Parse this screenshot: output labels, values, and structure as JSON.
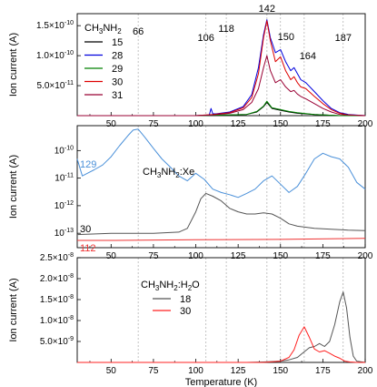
{
  "chart_data": [
    {
      "type": "line",
      "panel": "top",
      "ylabel": "Ion current (A)",
      "xlim": [
        30,
        200
      ],
      "ylim": [
        0,
        1.7e-10
      ],
      "x_ticks": [
        50,
        75,
        100,
        125,
        150,
        175,
        200
      ],
      "x_tick_labels": [
        "50",
        "75",
        "100",
        "125",
        "150",
        "175",
        "200"
      ],
      "y_ticks": [
        5e-11,
        1e-10,
        1.5e-10
      ],
      "y_tick_labels": [
        "5.0x10-11",
        "1.0x10-10",
        "1.5x10-10"
      ],
      "legend_title": "CH3NH2",
      "legend_position": "top-left",
      "grid": false,
      "annotations": [
        {
          "text": "66",
          "x": 66
        },
        {
          "text": "106",
          "x": 106
        },
        {
          "text": "118",
          "x": 118
        },
        {
          "text": "142",
          "x": 142
        },
        {
          "text": "150",
          "x": 150
        },
        {
          "text": "164",
          "x": 164
        },
        {
          "text": "187",
          "x": 187
        }
      ],
      "series": [
        {
          "name": "15",
          "color": "#000000",
          "x": [
            30,
            100,
            130,
            136,
            140,
            142,
            145,
            150,
            155,
            160,
            170,
            185,
            200
          ],
          "y": [
            0,
            0,
            2e-12,
            6e-12,
            1.5e-11,
            2.2e-11,
            1.2e-11,
            9e-12,
            6e-12,
            4e-12,
            2e-12,
            0,
            0
          ]
        },
        {
          "name": "28",
          "color": "#0000dd",
          "x": [
            30,
            100,
            108,
            109,
            110,
            112,
            120,
            128,
            133,
            137,
            140,
            142,
            144,
            147,
            150,
            153,
            156,
            158,
            160,
            162,
            165,
            170,
            175,
            180,
            185,
            190,
            200
          ],
          "y": [
            0,
            0,
            1e-12,
            1.2e-11,
            3e-12,
            3e-12,
            6e-12,
            1.5e-11,
            3.5e-11,
            8e-11,
            1.35e-10,
            1.6e-10,
            1.3e-10,
            1.05e-10,
            1.1e-10,
            9e-11,
            7.5e-11,
            8e-11,
            7e-11,
            6e-11,
            5.5e-11,
            4e-11,
            2.5e-11,
            1.2e-11,
            5e-12,
            2e-12,
            0
          ]
        },
        {
          "name": "29",
          "color": "#008000",
          "x": [
            30,
            100,
            130,
            136,
            140,
            142,
            145,
            150,
            155,
            160,
            170,
            185,
            200
          ],
          "y": [
            0,
            0,
            2e-12,
            7e-12,
            1.6e-11,
            2.4e-11,
            1.3e-11,
            1e-11,
            7e-12,
            5e-12,
            2e-12,
            0,
            0
          ]
        },
        {
          "name": "30",
          "color": "#dd0000",
          "x": [
            30,
            100,
            110,
            120,
            128,
            133,
            137,
            140,
            142,
            144,
            147,
            150,
            153,
            156,
            158,
            160,
            162,
            165,
            170,
            175,
            180,
            185,
            190,
            200
          ],
          "y": [
            0,
            0,
            2e-12,
            5e-12,
            1.3e-11,
            3e-11,
            7e-11,
            1.3e-10,
            1.58e-10,
            1.25e-10,
            9e-11,
            9.8e-11,
            7.5e-11,
            6e-11,
            6.5e-11,
            5.5e-11,
            4.8e-11,
            4.5e-11,
            3.2e-11,
            2e-11,
            1e-11,
            4e-12,
            1e-12,
            0
          ]
        },
        {
          "name": "31",
          "color": "#990033",
          "x": [
            30,
            100,
            110,
            120,
            128,
            133,
            137,
            140,
            142,
            144,
            147,
            150,
            153,
            156,
            158,
            160,
            162,
            165,
            170,
            175,
            180,
            185,
            200
          ],
          "y": [
            0,
            0,
            1e-12,
            4e-12,
            1e-11,
            2.2e-11,
            4.5e-11,
            8e-11,
            1e-10,
            7.5e-11,
            5.5e-11,
            6e-11,
            4.8e-11,
            4e-11,
            4.2e-11,
            3.6e-11,
            3.2e-11,
            2.8e-11,
            2e-11,
            1.2e-11,
            6e-12,
            2e-12,
            0
          ]
        }
      ]
    },
    {
      "type": "line",
      "panel": "middle",
      "ylabel": "Ion current (A)",
      "xlim": [
        30,
        200
      ],
      "yscale": "log",
      "ylim": [
        3e-14,
        8e-10
      ],
      "x_ticks": [
        50,
        75,
        100,
        125,
        150,
        175,
        200
      ],
      "x_tick_labels": [
        "50",
        "75",
        "100",
        "125",
        "150",
        "175",
        "200"
      ],
      "y_ticks": [
        1e-13,
        1e-12,
        1e-11,
        1e-10
      ],
      "y_tick_labels": [
        "10-13",
        "10-12",
        "10-11",
        "10-10"
      ],
      "annotation": "CH3NH2:Xe",
      "grid": false,
      "series": [
        {
          "name": "129",
          "color": "#4a90d9",
          "x": [
            30,
            33,
            36,
            40,
            45,
            50,
            55,
            60,
            63,
            66,
            70,
            75,
            80,
            85,
            90,
            95,
            100,
            105,
            110,
            115,
            120,
            125,
            130,
            135,
            140,
            145,
            150,
            155,
            160,
            165,
            170,
            175,
            180,
            185,
            190,
            195,
            200
          ],
          "y": [
            5e-11,
            1.2e-11,
            1.5e-11,
            2e-11,
            3e-11,
            6e-11,
            1.5e-10,
            3.5e-10,
            5.5e-10,
            6e-10,
            3e-10,
            1.2e-10,
            5e-11,
            2.5e-11,
            1.2e-11,
            8e-12,
            1.5e-11,
            9e-12,
            4e-12,
            3e-12,
            2.5e-12,
            2e-12,
            2.8e-12,
            4e-12,
            8e-12,
            1.2e-11,
            6e-12,
            3e-12,
            5e-12,
            1.5e-11,
            5e-11,
            8e-11,
            6e-11,
            5e-11,
            2.5e-11,
            7e-12,
            4e-12
          ]
        },
        {
          "name": "30",
          "color": "#555555",
          "x": [
            30,
            50,
            75,
            90,
            95,
            100,
            103,
            106,
            110,
            115,
            120,
            125,
            130,
            135,
            140,
            145,
            150,
            155,
            160,
            170,
            180,
            190,
            200
          ],
          "y": [
            9e-14,
            1e-13,
            1e-13,
            1.1e-13,
            1.5e-13,
            6e-13,
            1.8e-12,
            2.8e-12,
            2.2e-12,
            1.5e-12,
            8e-13,
            6e-13,
            5e-13,
            5e-13,
            5.5e-13,
            5e-13,
            3.5e-13,
            2.2e-13,
            1.8e-13,
            1.5e-13,
            1.4e-13,
            1.3e-13,
            1.25e-13
          ]
        },
        {
          "name": "112",
          "color": "#ee3333",
          "x": [
            30,
            50,
            100,
            150,
            200
          ],
          "y": [
            5.5e-14,
            5.5e-14,
            5.8e-14,
            6e-14,
            6.5e-14
          ]
        }
      ]
    },
    {
      "type": "line",
      "panel": "bottom",
      "xlabel": "Temperature (K)",
      "ylabel": "Ion current (A)",
      "xlim": [
        30,
        200
      ],
      "ylim": [
        0,
        2.5e-08
      ],
      "x_ticks": [
        50,
        75,
        100,
        125,
        150,
        175,
        200
      ],
      "x_tick_labels": [
        "50",
        "75",
        "100",
        "125",
        "150",
        "175",
        "200"
      ],
      "y_ticks": [
        5e-09,
        1e-08,
        1.5e-08,
        2e-08,
        2.5e-08
      ],
      "y_tick_labels": [
        "5.0x10-9",
        "1.0x10-8",
        "1.5x10-8",
        "2.0x10-8",
        "2.5x10-8"
      ],
      "legend_title": "CH3NH2:H2O",
      "legend_position": "top-left",
      "grid": false,
      "series": [
        {
          "name": "18",
          "color": "#555555",
          "x": [
            30,
            130,
            140,
            150,
            155,
            160,
            163,
            167,
            170,
            173,
            176,
            179,
            182,
            185,
            187,
            189,
            191,
            193,
            195,
            200
          ],
          "y": [
            0,
            0,
            1e-10,
            3e-10,
            6e-10,
            1.2e-09,
            2.2e-09,
            3.5e-09,
            3.8e-09,
            4.5e-09,
            3.8e-09,
            5e-09,
            9e-09,
            1.45e-08,
            1.68e-08,
            1.3e-08,
            6e-09,
            1.5e-09,
            3e-10,
            0
          ]
        },
        {
          "name": "30",
          "color": "#ff2222",
          "x": [
            30,
            140,
            150,
            155,
            158,
            161,
            164,
            167,
            170,
            173,
            176,
            179,
            182,
            185,
            188,
            191,
            195,
            200
          ],
          "y": [
            0,
            0,
            3e-10,
            1.2e-09,
            3e-09,
            6.5e-09,
            8.5e-09,
            6e-09,
            3.2e-09,
            2.5e-09,
            2.8e-09,
            2.2e-09,
            1.5e-09,
            1e-09,
            3e-10,
            1e-10,
            0,
            0
          ]
        }
      ]
    }
  ],
  "colors": {
    "grid_guides": "#aaaaaa",
    "axis": "#000000"
  }
}
